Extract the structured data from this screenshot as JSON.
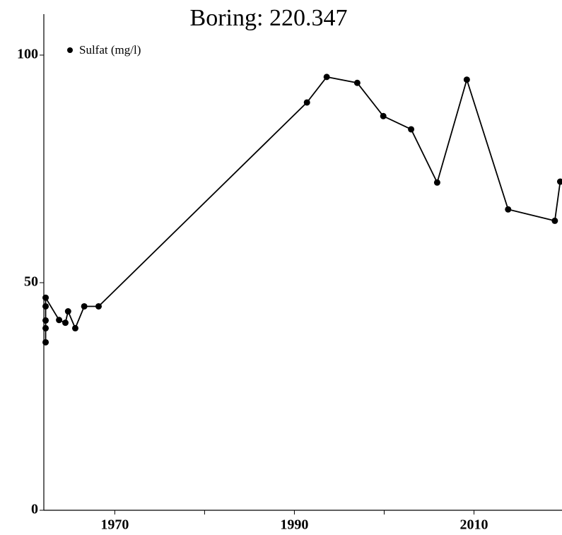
{
  "chart_data": {
    "type": "line",
    "title": "Boring: 220.347",
    "x": [
      1962.3,
      1962.3,
      1962.3,
      1962.3,
      1962.3,
      1963.8,
      1964.5,
      1964.8,
      1965.6,
      1966.6,
      1968.2,
      1991.4,
      1993.6,
      1997.0,
      1999.9,
      2003.0,
      2005.9,
      2009.2,
      2013.8,
      2019.0,
      2019.6
    ],
    "series": [
      {
        "name": "Sulfat (mg/l)",
        "color": "#000000",
        "values": [
          36.9,
          40.0,
          41.7,
          44.8,
          46.7,
          41.8,
          41.2,
          43.7,
          40.0,
          44.8,
          44.8,
          89.6,
          95.2,
          93.9,
          86.6,
          83.7,
          72.0,
          94.6,
          66.1,
          63.6,
          72.2
        ]
      }
    ],
    "xlim": [
      1962.1,
      2019.8
    ],
    "xticks": [
      1970,
      1990,
      2010
    ],
    "minor_xticks": [
      1980,
      2000
    ],
    "ylim": [
      0,
      109
    ],
    "yticks": [
      0,
      50,
      100
    ],
    "legend": "upper left"
  }
}
